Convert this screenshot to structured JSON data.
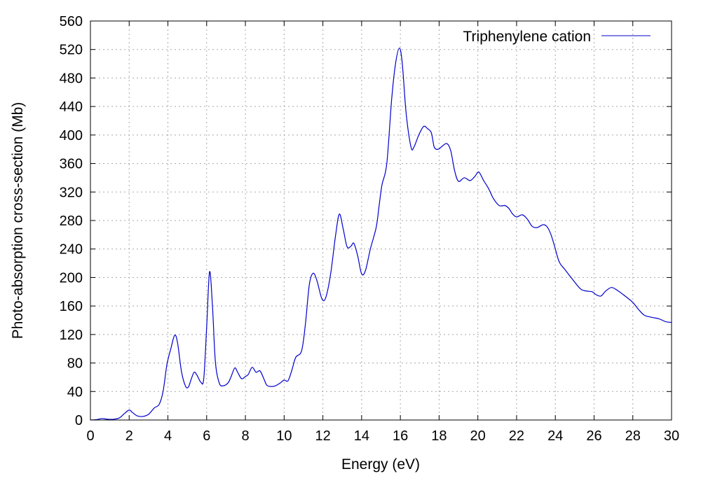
{
  "chart_data": {
    "type": "line",
    "title": "",
    "xlabel": "Energy (eV)",
    "ylabel": "Photo-absorption cross-section (Mb)",
    "xlim": [
      0,
      30
    ],
    "ylim": [
      0,
      560
    ],
    "xticks": [
      0,
      2,
      4,
      6,
      8,
      10,
      12,
      14,
      16,
      18,
      20,
      22,
      24,
      26,
      28,
      30
    ],
    "yticks": [
      0,
      40,
      80,
      120,
      160,
      200,
      240,
      280,
      320,
      360,
      400,
      440,
      480,
      520,
      560
    ],
    "grid": true,
    "legend_position": "top-right",
    "series": [
      {
        "name": "Triphenylene cation",
        "color": "#0000cc",
        "points": [
          [
            0.0,
            0
          ],
          [
            0.3,
            0.5
          ],
          [
            0.6,
            2
          ],
          [
            0.9,
            1
          ],
          [
            1.2,
            1
          ],
          [
            1.5,
            3
          ],
          [
            1.75,
            9
          ],
          [
            2.0,
            14
          ],
          [
            2.15,
            11
          ],
          [
            2.4,
            6
          ],
          [
            2.7,
            5
          ],
          [
            3.0,
            8
          ],
          [
            3.3,
            17
          ],
          [
            3.55,
            22
          ],
          [
            3.75,
            40
          ],
          [
            3.95,
            78
          ],
          [
            4.15,
            100
          ],
          [
            4.35,
            119
          ],
          [
            4.5,
            108
          ],
          [
            4.7,
            68
          ],
          [
            4.9,
            48
          ],
          [
            5.05,
            46
          ],
          [
            5.2,
            57
          ],
          [
            5.35,
            67
          ],
          [
            5.5,
            63
          ],
          [
            5.7,
            53
          ],
          [
            5.85,
            58
          ],
          [
            6.0,
            130
          ],
          [
            6.15,
            208
          ],
          [
            6.3,
            160
          ],
          [
            6.45,
            82
          ],
          [
            6.65,
            52
          ],
          [
            6.85,
            48
          ],
          [
            7.1,
            52
          ],
          [
            7.25,
            60
          ],
          [
            7.45,
            73
          ],
          [
            7.6,
            67
          ],
          [
            7.8,
            58
          ],
          [
            8.0,
            61
          ],
          [
            8.15,
            64
          ],
          [
            8.35,
            74
          ],
          [
            8.55,
            67
          ],
          [
            8.75,
            69
          ],
          [
            8.95,
            58
          ],
          [
            9.1,
            49
          ],
          [
            9.3,
            47
          ],
          [
            9.55,
            48
          ],
          [
            9.8,
            52
          ],
          [
            10.0,
            56
          ],
          [
            10.2,
            55
          ],
          [
            10.4,
            70
          ],
          [
            10.6,
            88
          ],
          [
            10.9,
            97
          ],
          [
            11.1,
            135
          ],
          [
            11.3,
            190
          ],
          [
            11.5,
            206
          ],
          [
            11.7,
            195
          ],
          [
            11.95,
            170
          ],
          [
            12.15,
            172
          ],
          [
            12.4,
            205
          ],
          [
            12.65,
            258
          ],
          [
            12.85,
            289
          ],
          [
            13.05,
            268
          ],
          [
            13.25,
            243
          ],
          [
            13.45,
            244
          ],
          [
            13.6,
            248
          ],
          [
            13.8,
            230
          ],
          [
            14.0,
            205
          ],
          [
            14.2,
            210
          ],
          [
            14.45,
            240
          ],
          [
            14.75,
            270
          ],
          [
            14.9,
            300
          ],
          [
            15.05,
            330
          ],
          [
            15.3,
            360
          ],
          [
            15.55,
            450
          ],
          [
            15.75,
            500
          ],
          [
            15.95,
            522
          ],
          [
            16.1,
            500
          ],
          [
            16.3,
            430
          ],
          [
            16.55,
            383
          ],
          [
            16.7,
            383
          ],
          [
            16.95,
            400
          ],
          [
            17.2,
            412
          ],
          [
            17.4,
            409
          ],
          [
            17.6,
            403
          ],
          [
            17.75,
            383
          ],
          [
            17.95,
            380
          ],
          [
            18.15,
            384
          ],
          [
            18.4,
            388
          ],
          [
            18.6,
            378
          ],
          [
            18.8,
            350
          ],
          [
            19.0,
            335
          ],
          [
            19.3,
            340
          ],
          [
            19.6,
            336
          ],
          [
            19.85,
            342
          ],
          [
            20.05,
            348
          ],
          [
            20.3,
            336
          ],
          [
            20.55,
            325
          ],
          [
            20.8,
            311
          ],
          [
            21.1,
            301
          ],
          [
            21.4,
            301
          ],
          [
            21.6,
            297
          ],
          [
            21.8,
            289
          ],
          [
            22.0,
            285
          ],
          [
            22.3,
            288
          ],
          [
            22.55,
            282
          ],
          [
            22.8,
            272
          ],
          [
            23.05,
            270
          ],
          [
            23.35,
            274
          ],
          [
            23.55,
            272
          ],
          [
            23.75,
            262
          ],
          [
            23.95,
            245
          ],
          [
            24.2,
            222
          ],
          [
            24.5,
            211
          ],
          [
            24.9,
            197
          ],
          [
            25.3,
            184
          ],
          [
            25.6,
            181
          ],
          [
            25.9,
            180
          ],
          [
            26.1,
            176
          ],
          [
            26.35,
            174
          ],
          [
            26.6,
            181
          ],
          [
            26.9,
            186
          ],
          [
            27.2,
            182
          ],
          [
            27.6,
            174
          ],
          [
            28.0,
            165
          ],
          [
            28.3,
            155
          ],
          [
            28.6,
            147
          ],
          [
            29.0,
            144
          ],
          [
            29.35,
            142
          ],
          [
            29.7,
            138
          ],
          [
            30.0,
            137
          ]
        ]
      }
    ]
  }
}
